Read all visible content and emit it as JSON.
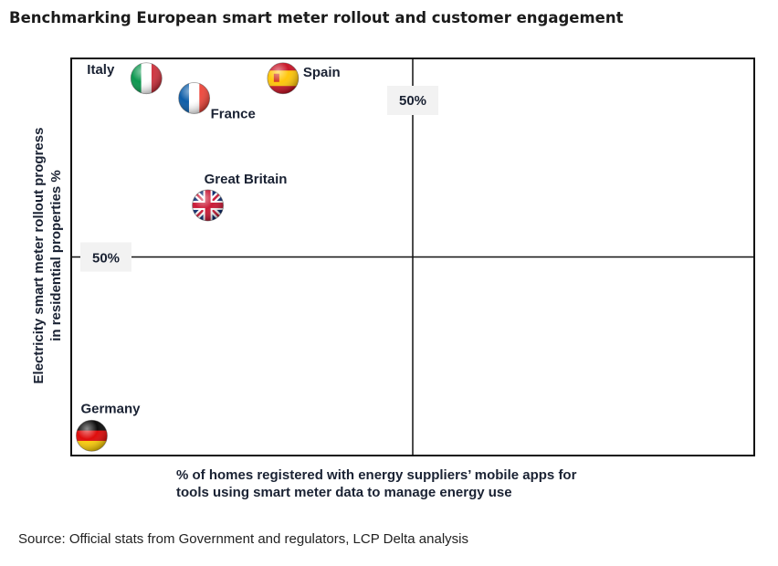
{
  "title": "Benchmarking European smart meter rollout and customer engagement",
  "source": "Source: Official stats from Government and regulators, LCP Delta analysis",
  "chart_data": {
    "type": "scatter",
    "title": "Benchmarking European smart meter rollout and customer engagement",
    "xlabel_lines": [
      "% of homes registered with energy suppliers’ mobile apps for",
      "tools using smart meter data to manage energy use"
    ],
    "ylabel_lines": [
      "Electricity smart meter rollout progress",
      "in residential properties %"
    ],
    "xlim": [
      0,
      100
    ],
    "ylim": [
      0,
      100
    ],
    "grid": false,
    "midline_x_label": "50%",
    "midline_y_label": "50%",
    "points": [
      {
        "name": "Italy",
        "x": 11,
        "y": 95,
        "flag": "italy"
      },
      {
        "name": "France",
        "x": 18,
        "y": 90,
        "flag": "france"
      },
      {
        "name": "Spain",
        "x": 31,
        "y": 95,
        "flag": "spain"
      },
      {
        "name": "Great Britain",
        "x": 20,
        "y": 63,
        "flag": "great-britain"
      },
      {
        "name": "Germany",
        "x": 3,
        "y": 5,
        "flag": "germany"
      }
    ],
    "colors": {
      "frame": "#111111",
      "label": "#1a2233",
      "badge_bg": "#f2f2f2",
      "italy": [
        "#009246",
        "#ffffff",
        "#ce2b37"
      ],
      "france": [
        "#0055a4",
        "#ffffff",
        "#ef4135"
      ],
      "spain": [
        "#c60b1e",
        "#ffc400",
        "#c60b1e"
      ],
      "germany": [
        "#000000",
        "#dd0000",
        "#ffce00"
      ],
      "uk": [
        "#012169",
        "#ffffff",
        "#c8102e"
      ]
    }
  }
}
